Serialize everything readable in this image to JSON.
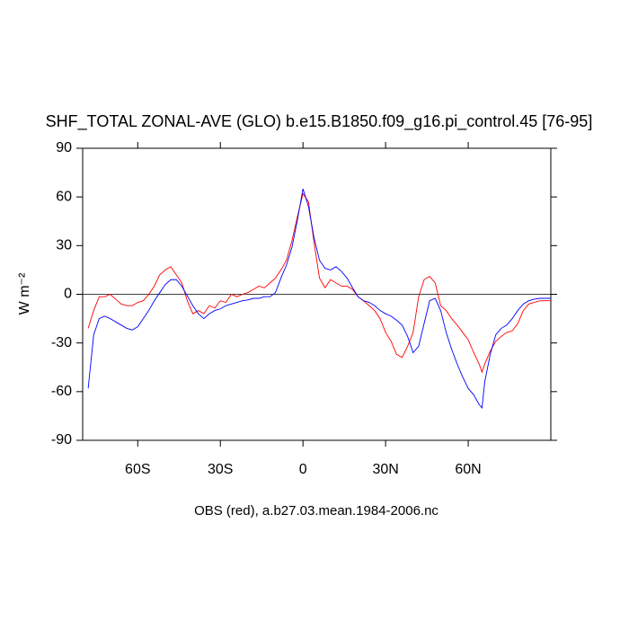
{
  "chart_data": {
    "type": "line",
    "title": "SHF_TOTAL ZONAL-AVE (GLO) b.e15.B1850.f09_g16.pi_control.45 [76-95]",
    "y_label": "W m⁻²",
    "caption": "OBS (red), a.b27.03.mean.1984-2006.nc",
    "xlim": [
      -80,
      90
    ],
    "ylim": [
      -90,
      90
    ],
    "xticks": [
      {
        "value": -60,
        "label": "60S"
      },
      {
        "value": -30,
        "label": "30S"
      },
      0,
      {
        "value": 30,
        "label": "30N"
      },
      {
        "value": 60,
        "label": "60N"
      }
    ],
    "yticks": [
      90,
      60,
      30,
      0,
      -30,
      -60,
      -90
    ],
    "reference_line": 0,
    "x": [
      -78,
      -76,
      -74,
      -72,
      -70,
      -68,
      -66,
      -64,
      -62,
      -60,
      -58,
      -56,
      -54,
      -52,
      -50,
      -48,
      -46,
      -44,
      -42,
      -40,
      -38,
      -36,
      -34,
      -32,
      -30,
      -28,
      -26,
      -24,
      -22,
      -20,
      -18,
      -16,
      -14,
      -12,
      -10,
      -8,
      -6,
      -4,
      -2,
      0,
      2,
      4,
      6,
      8,
      10,
      12,
      14,
      16,
      18,
      20,
      22,
      24,
      26,
      28,
      30,
      32,
      34,
      36,
      38,
      40,
      42,
      44,
      46,
      48,
      50,
      52,
      54,
      56,
      58,
      60,
      62,
      64,
      65,
      66,
      68,
      70,
      72,
      74,
      76,
      78,
      80,
      82,
      84,
      86,
      88,
      90
    ],
    "series": [
      {
        "color": "#ff0000",
        "values": [
          -21,
          -10,
          -1.5,
          -1.5,
          0,
          -3,
          -6,
          -7,
          -7,
          -5,
          -4,
          0,
          5,
          12,
          15,
          17,
          12,
          7,
          -4,
          -12,
          -10,
          -12,
          -7,
          -8.5,
          -4,
          -5,
          0,
          -1.5,
          0,
          1,
          3,
          5,
          4,
          7,
          10,
          15,
          21,
          33,
          48,
          62,
          57,
          32,
          10,
          4,
          9,
          7,
          5,
          5,
          3,
          -1.5,
          -4,
          -7,
          -10,
          -15,
          -23.5,
          -29,
          -37,
          -39,
          -32,
          -23.5,
          -1.5,
          9,
          11,
          7,
          -7,
          -10,
          -15,
          -19,
          -23.5,
          -28,
          -36,
          -43,
          -48,
          -43,
          -35,
          -29,
          -26,
          -23.5,
          -22.5,
          -18,
          -10,
          -6,
          -5,
          -4,
          -4,
          -4
        ]
      },
      {
        "color": "#0000ff",
        "values": [
          -58,
          -25,
          -15,
          -13.5,
          -15,
          -17,
          -19,
          -21,
          -22,
          -20,
          -15,
          -10,
          -4,
          1,
          6,
          9,
          9,
          5,
          -1,
          -7,
          -12,
          -15,
          -12,
          -10,
          -9,
          -7,
          -6,
          -5,
          -4,
          -3.5,
          -2.5,
          -2.5,
          -1.5,
          -1.5,
          1,
          10,
          18,
          29,
          46,
          65,
          54,
          35,
          21,
          16,
          15,
          17,
          14,
          10,
          4,
          -1.5,
          -4,
          -5,
          -7,
          -10,
          -12,
          -13.5,
          -16,
          -19,
          -26,
          -36,
          -32,
          -18,
          -4,
          -2.5,
          -10,
          -23.5,
          -34,
          -43,
          -51,
          -58,
          -62,
          -68,
          -70,
          -54,
          -37,
          -25,
          -21,
          -19,
          -15,
          -10,
          -6,
          -4,
          -3,
          -2.5,
          -2.5,
          -2.5
        ]
      }
    ]
  }
}
